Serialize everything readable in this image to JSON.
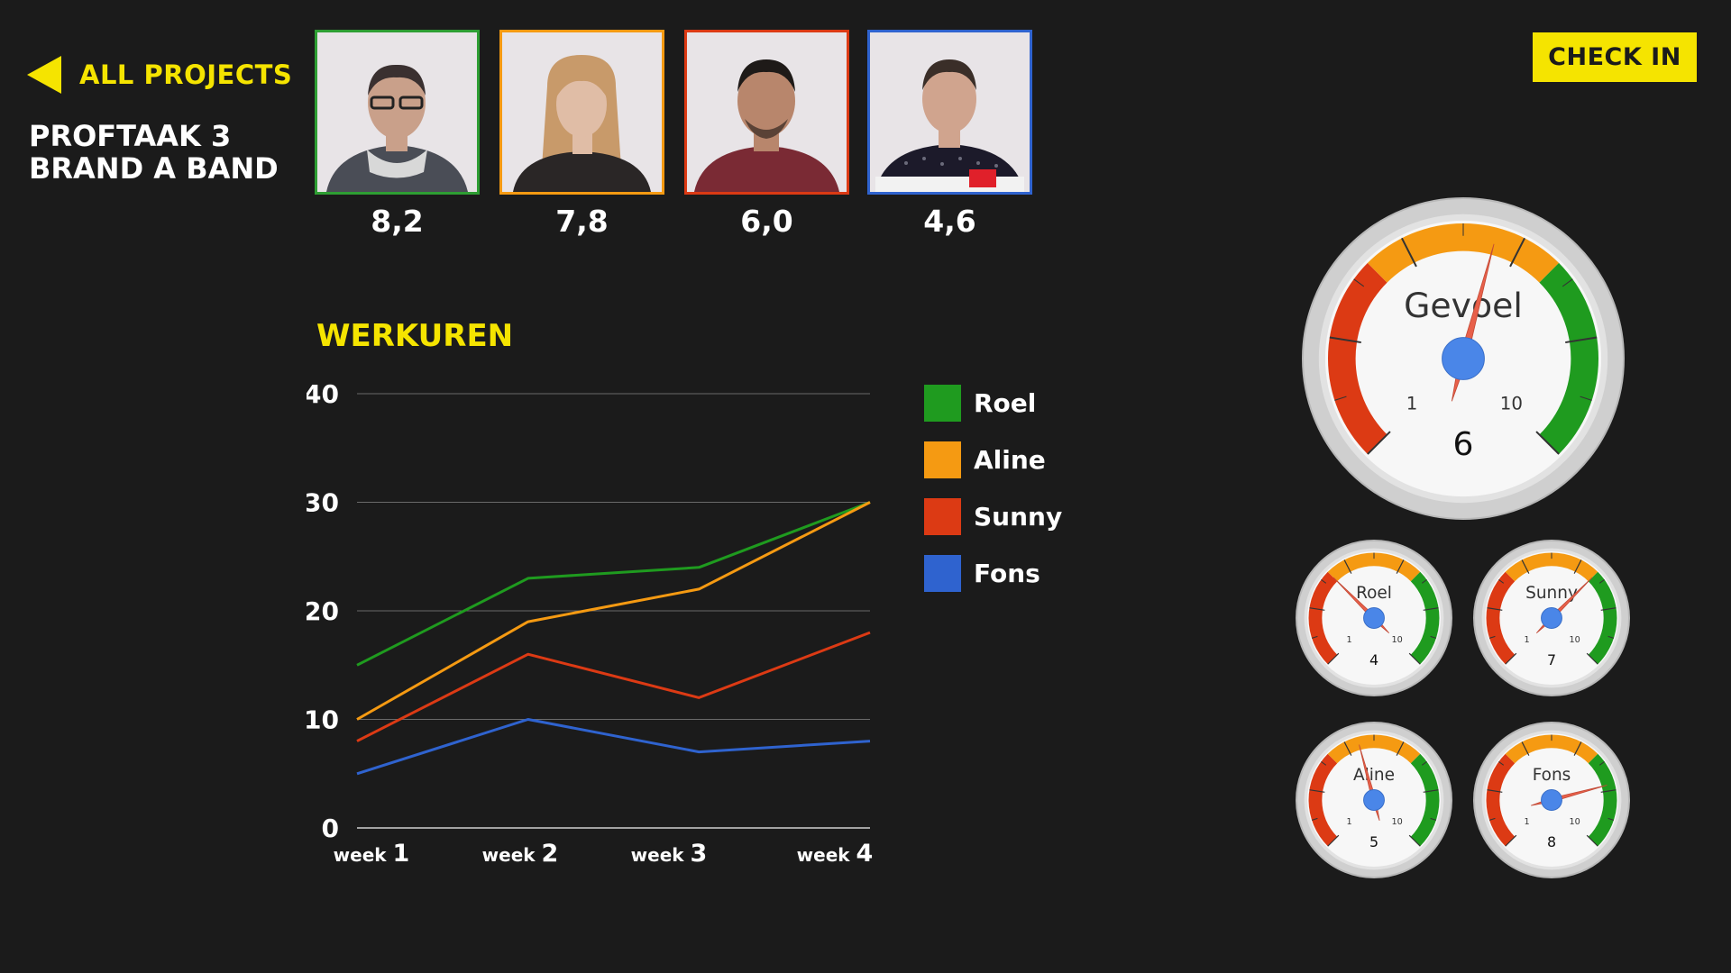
{
  "nav": {
    "back_label": "ALL PROJECTS"
  },
  "project": {
    "title_line1": "PROFTAAK 3",
    "title_line2": "BRAND A BAND"
  },
  "checkin": {
    "label": "CHECK IN"
  },
  "members": [
    {
      "name": "Roel",
      "score": "8,2",
      "color": "#2e9e33"
    },
    {
      "name": "Aline",
      "score": "7,8",
      "color": "#f59a12"
    },
    {
      "name": "Sunny",
      "score": "6,0",
      "color": "#dc3a14"
    },
    {
      "name": "Fons",
      "score": "4,6",
      "color": "#2f63cf"
    }
  ],
  "chart_data": {
    "type": "line",
    "title": "WERKUREN",
    "categories": [
      "week 1",
      "week 2",
      "week 3",
      "week 4"
    ],
    "category_parts": [
      {
        "word": "week",
        "num": "1"
      },
      {
        "word": "week",
        "num": "2"
      },
      {
        "word": "week",
        "num": "3"
      },
      {
        "word": "week",
        "num": "4"
      }
    ],
    "ylim": [
      0,
      40
    ],
    "yticks": [
      0,
      10,
      20,
      30,
      40
    ],
    "grid": true,
    "legend_position": "right",
    "series": [
      {
        "name": "Roel",
        "color": "#1f9b1f",
        "values": [
          15,
          23,
          24,
          30
        ]
      },
      {
        "name": "Aline",
        "color": "#f59a12",
        "values": [
          10,
          19,
          22,
          30
        ]
      },
      {
        "name": "Sunny",
        "color": "#dc3a14",
        "values": [
          8,
          16,
          12,
          18
        ]
      },
      {
        "name": "Fons",
        "color": "#2f63cf",
        "values": [
          5,
          10,
          7,
          8
        ]
      }
    ]
  },
  "gauges": {
    "main": {
      "label": "Gevoel",
      "value": 6,
      "min_label": "1",
      "max_label": "10"
    },
    "small": [
      {
        "label": "Roel",
        "value": 4,
        "min_label": "1",
        "max_label": "10"
      },
      {
        "label": "Sunny",
        "value": 7,
        "min_label": "1",
        "max_label": "10"
      },
      {
        "label": "Aline",
        "value": 5,
        "min_label": "1",
        "max_label": "10"
      },
      {
        "label": "Fons",
        "value": 8,
        "min_label": "1",
        "max_label": "10"
      }
    ]
  },
  "colors": {
    "accent": "#f5e400",
    "background": "#1b1b1b",
    "gauge_red": "#dc3a14",
    "gauge_orange": "#f59a12",
    "gauge_green": "#1f9b1f",
    "needle": "#e8604a",
    "needle_hub": "#4a86e8"
  }
}
